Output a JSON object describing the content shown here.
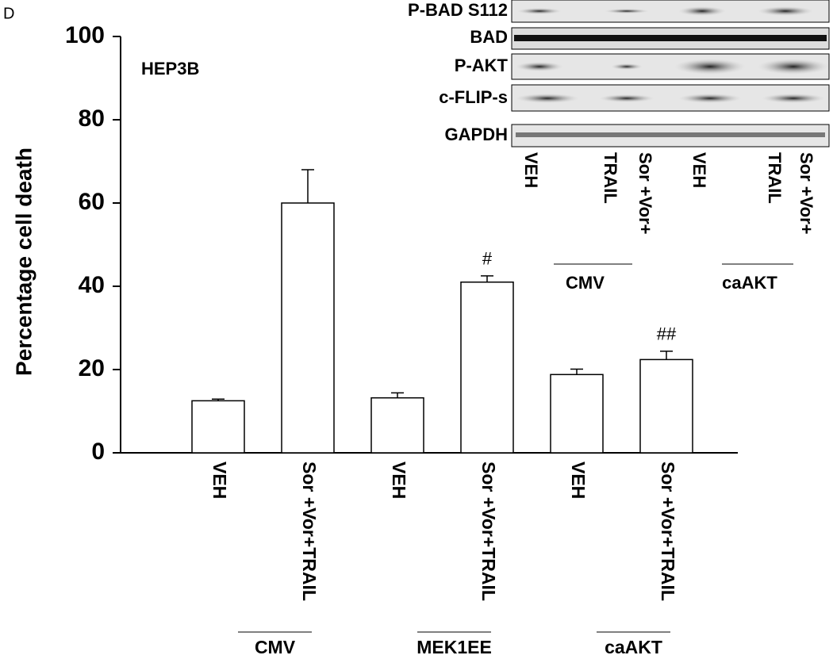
{
  "panel_label": "D",
  "chart_data": {
    "type": "bar",
    "subtitle": "HEP3B",
    "ylabel": "Percentage cell death",
    "categories": [
      "VEH",
      "Sor +Vor+TRAIL",
      "VEH",
      "Sor +Vor+TRAIL",
      "VEH",
      "Sor +Vor+TRAIL"
    ],
    "values": [
      12.5,
      60,
      13.2,
      41,
      18.8,
      22.4
    ],
    "errors": [
      0.4,
      8,
      1.2,
      1.5,
      1.3,
      2
    ],
    "annotations": [
      null,
      null,
      null,
      "#",
      null,
      "##"
    ],
    "groups": [
      "CMV",
      "MEK1EE",
      "caAKT"
    ],
    "color": "#ffffff",
    "ylim": [
      0,
      100
    ],
    "yticks": [
      0,
      20,
      40,
      60,
      80,
      100
    ]
  },
  "blot": {
    "rows": [
      "P-BAD S112",
      "BAD",
      "P-AKT",
      "c-FLIP-s",
      "GAPDH"
    ],
    "lanes": [
      "VEH",
      "TRAIL",
      "Sor +Vor+",
      "VEH",
      "TRAIL",
      "Sor +Vor+"
    ],
    "groups": [
      "CMV",
      "caAKT"
    ]
  }
}
